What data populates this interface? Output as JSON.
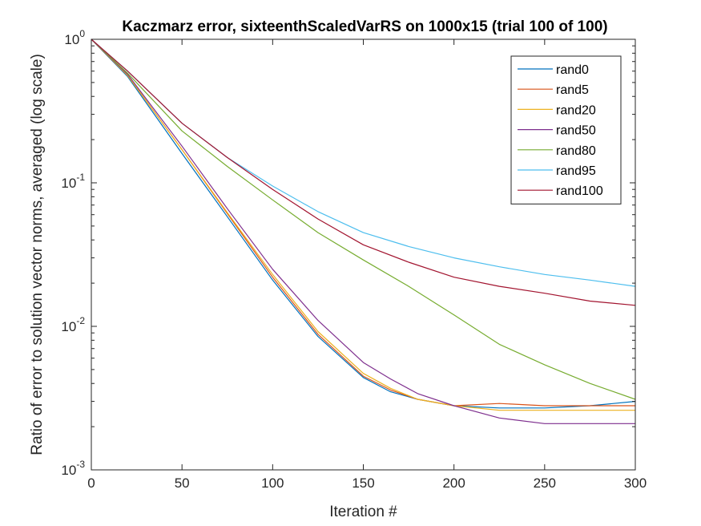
{
  "chart_data": {
    "type": "line",
    "title": "Kaczmarz error, sixteenthScaledVarRS on 1000x15 (trial 100 of 100)",
    "xlabel": "Iteration #",
    "ylabel": "Ratio of error to solution vector norms, averaged (log scale)",
    "xlim": [
      0,
      300
    ],
    "ylim": [
      0.001,
      1
    ],
    "yscale": "log",
    "grid": false,
    "legend_position": "top-right",
    "x_ticks": [
      {
        "value": 0,
        "label": "0"
      },
      {
        "value": 50,
        "label": "50"
      },
      {
        "value": 100,
        "label": "100"
      },
      {
        "value": 150,
        "label": "150"
      },
      {
        "value": 200,
        "label": "200"
      },
      {
        "value": 250,
        "label": "250"
      },
      {
        "value": 300,
        "label": "300"
      }
    ],
    "y_ticks": [
      {
        "value": 1,
        "base": "10",
        "exp": "0"
      },
      {
        "value": 0.1,
        "base": "10",
        "exp": "-1"
      },
      {
        "value": 0.01,
        "base": "10",
        "exp": "-2"
      },
      {
        "value": 0.001,
        "base": "10",
        "exp": "-3"
      }
    ],
    "series": [
      {
        "name": "rand0",
        "color": "#0072BD",
        "x": [
          0,
          20,
          50,
          75,
          100,
          125,
          150,
          165,
          180,
          200,
          225,
          250,
          275,
          300
        ],
        "y": [
          1.0,
          0.55,
          0.16,
          0.058,
          0.021,
          0.0085,
          0.0044,
          0.0035,
          0.0031,
          0.0028,
          0.0027,
          0.0027,
          0.0028,
          0.003
        ]
      },
      {
        "name": "rand5",
        "color": "#D95319",
        "x": [
          0,
          20,
          50,
          75,
          100,
          125,
          150,
          165,
          180,
          200,
          225,
          250,
          275,
          300
        ],
        "y": [
          1.0,
          0.56,
          0.17,
          0.061,
          0.022,
          0.0088,
          0.0045,
          0.0036,
          0.0031,
          0.0028,
          0.0029,
          0.0028,
          0.0028,
          0.0028
        ]
      },
      {
        "name": "rand20",
        "color": "#EDB120",
        "x": [
          0,
          20,
          50,
          75,
          100,
          125,
          150,
          165,
          180,
          200,
          225,
          250,
          275,
          300
        ],
        "y": [
          1.0,
          0.56,
          0.17,
          0.062,
          0.023,
          0.0092,
          0.0047,
          0.0037,
          0.0031,
          0.0028,
          0.0026,
          0.0026,
          0.0026,
          0.0026
        ]
      },
      {
        "name": "rand50",
        "color": "#7E2F8E",
        "x": [
          0,
          20,
          50,
          75,
          100,
          125,
          150,
          165,
          180,
          200,
          225,
          250,
          275,
          300
        ],
        "y": [
          1.0,
          0.57,
          0.18,
          0.066,
          0.025,
          0.011,
          0.0056,
          0.0043,
          0.0034,
          0.0028,
          0.0023,
          0.0021,
          0.0021,
          0.0021
        ]
      },
      {
        "name": "rand80",
        "color": "#77AC30",
        "x": [
          0,
          20,
          50,
          75,
          100,
          125,
          150,
          175,
          200,
          225,
          250,
          275,
          300
        ],
        "y": [
          1.0,
          0.58,
          0.23,
          0.13,
          0.076,
          0.045,
          0.029,
          0.019,
          0.012,
          0.0075,
          0.0054,
          0.004,
          0.0031
        ]
      },
      {
        "name": "rand95",
        "color": "#4DBEEE",
        "x": [
          0,
          20,
          50,
          75,
          100,
          125,
          150,
          175,
          200,
          225,
          250,
          275,
          300
        ],
        "y": [
          1.0,
          0.6,
          0.26,
          0.15,
          0.095,
          0.063,
          0.045,
          0.036,
          0.03,
          0.026,
          0.023,
          0.021,
          0.019
        ]
      },
      {
        "name": "rand100",
        "color": "#A2142F",
        "x": [
          0,
          20,
          50,
          75,
          100,
          125,
          150,
          175,
          200,
          225,
          250,
          275,
          300
        ],
        "y": [
          1.0,
          0.6,
          0.26,
          0.15,
          0.09,
          0.056,
          0.037,
          0.028,
          0.022,
          0.019,
          0.017,
          0.015,
          0.014
        ]
      }
    ]
  }
}
